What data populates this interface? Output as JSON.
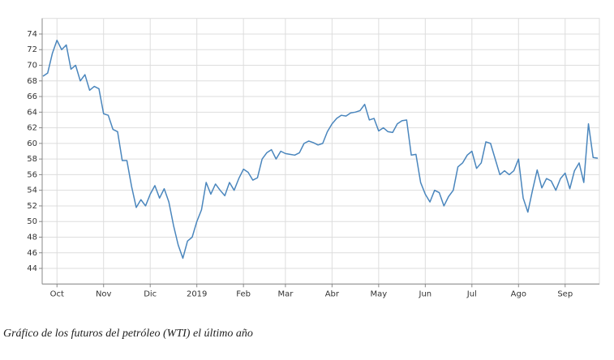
{
  "chart_data": {
    "type": "line",
    "caption": "Gráfico de los futuros del petróleo (WTI) el último año",
    "categories": [
      null,
      null,
      null,
      "Oct",
      null,
      null,
      null,
      null,
      null,
      null,
      null,
      null,
      null,
      "Nov",
      null,
      null,
      null,
      null,
      null,
      null,
      null,
      null,
      null,
      "Dic",
      null,
      null,
      null,
      null,
      null,
      null,
      null,
      null,
      null,
      "2019",
      null,
      null,
      null,
      null,
      null,
      null,
      null,
      null,
      null,
      "Feb",
      null,
      null,
      null,
      null,
      null,
      null,
      null,
      null,
      "Mar",
      null,
      null,
      null,
      null,
      null,
      null,
      null,
      null,
      null,
      "Abr",
      null,
      null,
      null,
      null,
      null,
      null,
      null,
      null,
      null,
      "May",
      null,
      null,
      null,
      null,
      null,
      null,
      null,
      null,
      null,
      "Jun",
      null,
      null,
      null,
      null,
      null,
      null,
      null,
      null,
      null,
      "Jul",
      null,
      null,
      null,
      null,
      null,
      null,
      null,
      null,
      null,
      "Ago",
      null,
      null,
      null,
      null,
      null,
      null,
      null,
      null,
      null,
      "Sep",
      null,
      null,
      null,
      null,
      null,
      null,
      null
    ],
    "values": [
      68.6,
      69.0,
      71.5,
      73.2,
      72.0,
      72.6,
      69.5,
      70.0,
      68.0,
      68.8,
      66.8,
      67.3,
      67.0,
      63.8,
      63.6,
      61.8,
      61.5,
      57.8,
      57.8,
      54.5,
      51.8,
      52.8,
      52.0,
      53.5,
      54.6,
      53.0,
      54.2,
      52.5,
      49.5,
      47.0,
      45.3,
      47.5,
      48.0,
      50.0,
      51.5,
      55.0,
      53.5,
      54.8,
      54.0,
      53.3,
      55.0,
      54.0,
      55.5,
      56.7,
      56.3,
      55.3,
      55.6,
      58.0,
      58.8,
      59.2,
      58.0,
      59.0,
      58.7,
      58.6,
      58.5,
      58.8,
      60.0,
      60.3,
      60.1,
      59.8,
      60.0,
      61.5,
      62.5,
      63.2,
      63.6,
      63.5,
      63.9,
      64.0,
      64.2,
      65.0,
      63.0,
      63.2,
      61.6,
      62.0,
      61.5,
      61.4,
      62.5,
      62.9,
      63.0,
      58.5,
      58.6,
      55.0,
      53.5,
      52.5,
      54.0,
      53.7,
      52.0,
      53.2,
      54.0,
      57.0,
      57.5,
      58.5,
      59.0,
      56.8,
      57.5,
      60.2,
      60.0,
      58.0,
      56.0,
      56.5,
      56.0,
      56.5,
      58.0,
      53.0,
      51.2,
      54.0,
      56.6,
      54.3,
      55.5,
      55.2,
      54.0,
      55.5,
      56.2,
      54.2,
      56.5,
      57.5,
      55.0,
      62.5,
      58.2,
      58.1
    ],
    "color": "#4a86bd",
    "ylim": [
      42,
      76
    ],
    "yticks": [
      44,
      46,
      48,
      50,
      52,
      54,
      56,
      58,
      60,
      62,
      64,
      66,
      68,
      70,
      72,
      74
    ],
    "grid": true
  }
}
